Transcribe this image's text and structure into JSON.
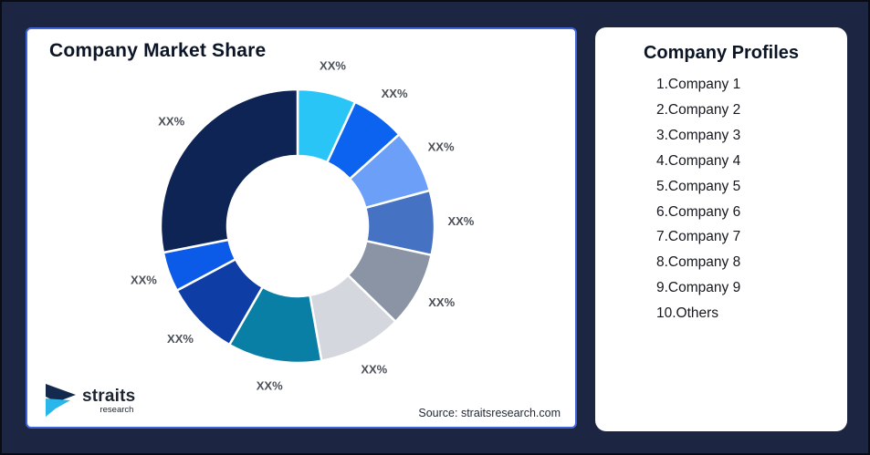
{
  "page": {
    "background_color": "#1C2541"
  },
  "market_share_card": {
    "title": "Company Market Share",
    "source_note": "Source: straitsresearch.com",
    "border_color": "#4064D9",
    "logo": {
      "brand": "straits",
      "sub_brand": "research",
      "icon_navy": "#14294E",
      "icon_cyan": "#29B7E9"
    }
  },
  "profiles_card": {
    "title": "Company Profiles",
    "items": [
      "1.Company 1",
      "2.Company 2",
      "3.Company 3",
      "4.Company 4",
      "5.Company 5",
      "6.Company 6",
      "7.Company 7",
      "8.Company 8",
      "9.Company 9",
      "10.Others"
    ]
  },
  "chart_data": {
    "type": "pie",
    "subtype": "donut",
    "title": "Company Market Share",
    "legend_position": "none",
    "start_angle_deg": 0,
    "direction": "clockwise",
    "label_color": "#4B5058",
    "segment_gap_color": "#ffffff",
    "segments": [
      {
        "name": "Company 1",
        "label": "XX%",
        "value": 6.9,
        "color": "#29C5F6"
      },
      {
        "name": "Company 2",
        "label": "XX%",
        "value": 6.4,
        "color": "#0B63F0"
      },
      {
        "name": "Company 3",
        "label": "XX%",
        "value": 7.5,
        "color": "#6C9FF7"
      },
      {
        "name": "Company 4",
        "label": "XX%",
        "value": 7.6,
        "color": "#4672C4"
      },
      {
        "name": "Company 5",
        "label": "XX%",
        "value": 8.9,
        "color": "#8B94A4"
      },
      {
        "name": "Company 6",
        "label": "XX%",
        "value": 9.9,
        "color": "#D4D7DD"
      },
      {
        "name": "Company 7",
        "label": "XX%",
        "value": 11.1,
        "color": "#0A7FA6"
      },
      {
        "name": "Company 8",
        "label": "XX%",
        "value": 8.9,
        "color": "#0E3DA6"
      },
      {
        "name": "Company 9",
        "label": "XX%",
        "value": 4.7,
        "color": "#0B5BE8"
      },
      {
        "name": "Others",
        "label": "XX%",
        "value": 28.1,
        "color": "#0D2454"
      }
    ],
    "source": "Source: straitsresearch.com"
  }
}
